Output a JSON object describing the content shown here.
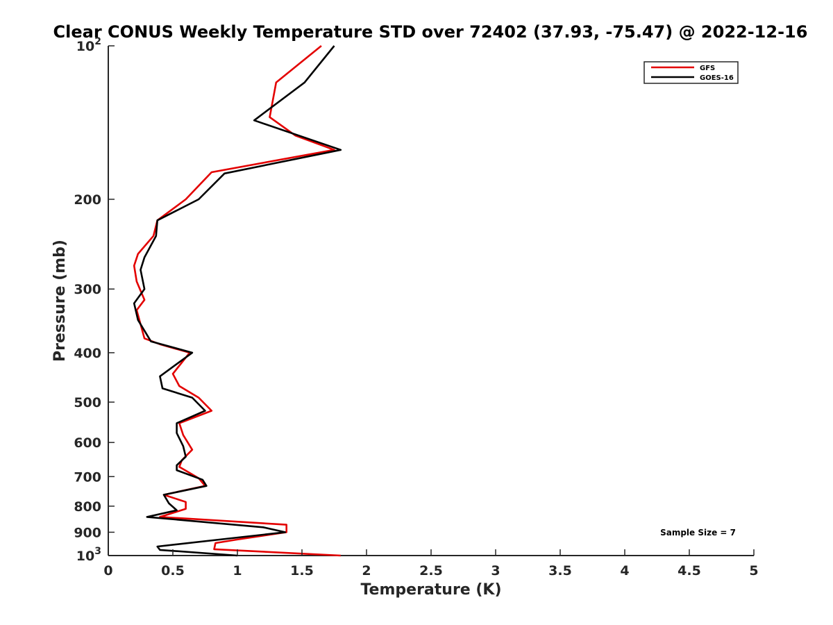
{
  "chart_data": {
    "type": "line",
    "title": "Clear CONUS Weekly Temperature STD over 72402 (37.93, -75.47) @ 2022-12-16",
    "xlabel": "Temperature (K)",
    "ylabel": "Pressure (mb)",
    "xlim": [
      0,
      5
    ],
    "ylim": [
      100,
      1000
    ],
    "y_scale": "log",
    "y_reversed": true,
    "x_ticks": [
      "0",
      "0.5",
      "1",
      "1.5",
      "2",
      "2.5",
      "3",
      "3.5",
      "4",
      "4.5",
      "5"
    ],
    "y_ticks": [
      {
        "value": 100,
        "base": "10",
        "exp": "2"
      },
      {
        "value": 200,
        "label": "200"
      },
      {
        "value": 300,
        "label": "300"
      },
      {
        "value": 400,
        "label": "400"
      },
      {
        "value": 500,
        "label": "500"
      },
      {
        "value": 600,
        "label": "600"
      },
      {
        "value": 700,
        "label": "700"
      },
      {
        "value": 800,
        "label": "800"
      },
      {
        "value": 900,
        "label": "900"
      },
      {
        "value": 1000,
        "base": "10",
        "exp": "3"
      }
    ],
    "grid": false,
    "legend_position": "top-right",
    "annotation": "Sample Size = 7",
    "series": [
      {
        "name": "GFS",
        "color": "#e30000",
        "points": [
          [
            1.65,
            100
          ],
          [
            1.3,
            118
          ],
          [
            1.25,
            138
          ],
          [
            1.45,
            150
          ],
          [
            1.75,
            160
          ],
          [
            0.8,
            177
          ],
          [
            0.6,
            200
          ],
          [
            0.38,
            220
          ],
          [
            0.35,
            236
          ],
          [
            0.23,
            256
          ],
          [
            0.2,
            270
          ],
          [
            0.22,
            290
          ],
          [
            0.28,
            315
          ],
          [
            0.22,
            330
          ],
          [
            0.28,
            375
          ],
          [
            0.4,
            385
          ],
          [
            0.63,
            400
          ],
          [
            0.5,
            440
          ],
          [
            0.55,
            465
          ],
          [
            0.7,
            490
          ],
          [
            0.8,
            520
          ],
          [
            0.55,
            550
          ],
          [
            0.58,
            580
          ],
          [
            0.65,
            620
          ],
          [
            0.57,
            650
          ],
          [
            0.55,
            670
          ],
          [
            0.7,
            705
          ],
          [
            0.75,
            730
          ],
          [
            0.43,
            760
          ],
          [
            0.6,
            785
          ],
          [
            0.6,
            810
          ],
          [
            0.4,
            840
          ],
          [
            1.38,
            870
          ],
          [
            1.38,
            900
          ],
          [
            1.0,
            930
          ],
          [
            0.83,
            945
          ],
          [
            0.82,
            972
          ],
          [
            1.8,
            1000
          ]
        ]
      },
      {
        "name": "GOES-16",
        "color": "#000000",
        "points": [
          [
            1.75,
            100
          ],
          [
            1.52,
            118
          ],
          [
            1.13,
            140
          ],
          [
            1.8,
            160
          ],
          [
            0.9,
            178
          ],
          [
            0.7,
            200
          ],
          [
            0.38,
            220
          ],
          [
            0.37,
            236
          ],
          [
            0.28,
            260
          ],
          [
            0.25,
            275
          ],
          [
            0.28,
            300
          ],
          [
            0.2,
            320
          ],
          [
            0.23,
            345
          ],
          [
            0.33,
            380
          ],
          [
            0.65,
            400
          ],
          [
            0.4,
            445
          ],
          [
            0.42,
            470
          ],
          [
            0.65,
            490
          ],
          [
            0.75,
            520
          ],
          [
            0.53,
            550
          ],
          [
            0.53,
            575
          ],
          [
            0.58,
            610
          ],
          [
            0.6,
            640
          ],
          [
            0.53,
            665
          ],
          [
            0.53,
            680
          ],
          [
            0.73,
            710
          ],
          [
            0.76,
            730
          ],
          [
            0.43,
            760
          ],
          [
            0.47,
            790
          ],
          [
            0.53,
            815
          ],
          [
            0.3,
            840
          ],
          [
            1.2,
            880
          ],
          [
            1.37,
            900
          ],
          [
            0.38,
            960
          ],
          [
            0.4,
            975
          ],
          [
            1.0,
            1000
          ]
        ]
      }
    ]
  }
}
